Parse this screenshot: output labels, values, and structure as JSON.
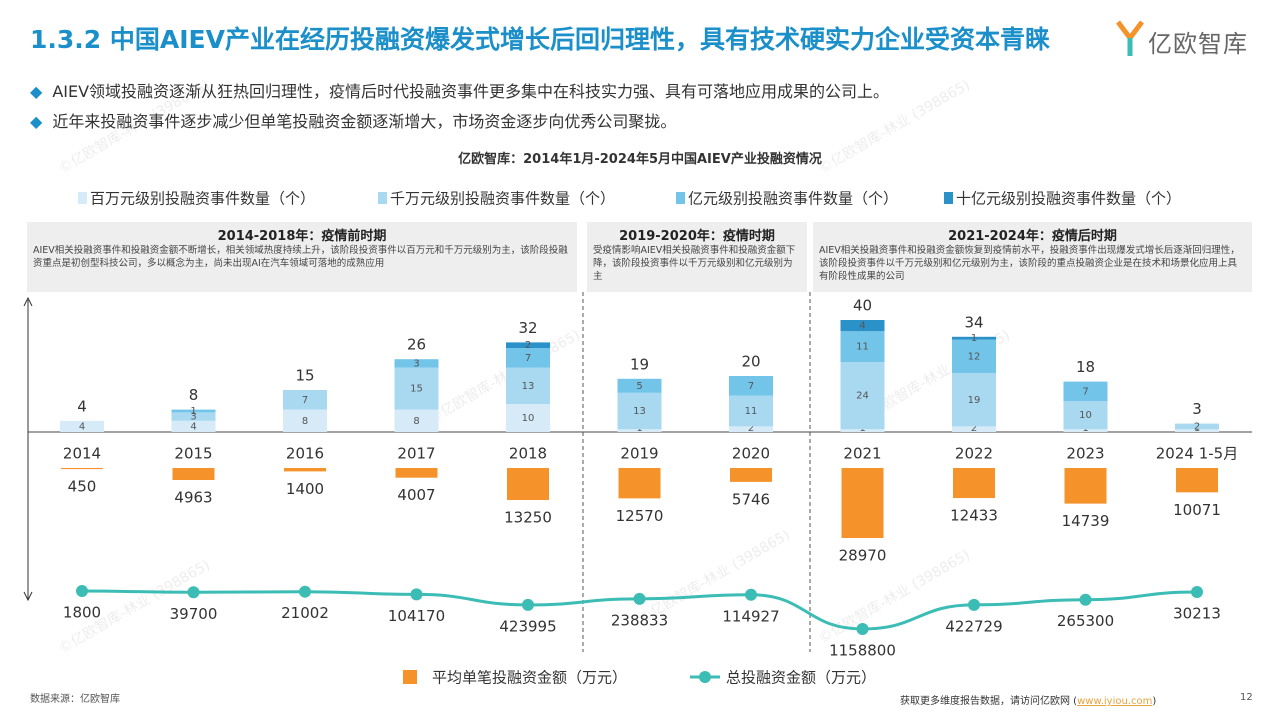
{
  "header": {
    "title": "1.3.2 中国AIEV产业在经历投融资爆发式增长后回归理性，具有技术硬实力企业受资本青睐",
    "logo": "亿欧智库"
  },
  "bullets": [
    "AIEV领域投融资逐渐从狂热回归理性，疫情后时代投融资事件更多集中在科技实力强、具有可落地应用成果的公司上。",
    "近年来投融资事件逐步减少但单笔投融资金额逐渐增大，市场资金逐步向优秀公司聚拢。"
  ],
  "watermark": "©亿欧智库-林业 (398865)",
  "chart_data": [
    {
      "type": "bar",
      "stacked": true,
      "title": "亿欧智库：2014年1月-2024年5月中国AIEV产业投融资情况",
      "categories": [
        "2014",
        "2015",
        "2016",
        "2017",
        "2018",
        "2019",
        "2020",
        "2021",
        "2022",
        "2023",
        "2024 1-5月"
      ],
      "series": [
        {
          "name": "百万元级别投融资事件数量（个）",
          "color": "#d6ebf7",
          "values": [
            4,
            4,
            8,
            8,
            10,
            1,
            2,
            1,
            2,
            1,
            1
          ]
        },
        {
          "name": "千万元级别投融资事件数量（个）",
          "color": "#a9d9f0",
          "values": [
            null,
            3,
            7,
            15,
            13,
            13,
            11,
            24,
            19,
            10,
            2
          ]
        },
        {
          "name": "亿元级别投融资事件数量（个）",
          "color": "#72c4e9",
          "values": [
            null,
            1,
            null,
            3,
            7,
            5,
            7,
            11,
            12,
            7,
            null
          ]
        },
        {
          "name": "十亿元级别投融资事件数量（个）",
          "color": "#2a92c9",
          "values": [
            null,
            null,
            null,
            null,
            2,
            null,
            null,
            4,
            1,
            null,
            null
          ]
        }
      ],
      "totals": [
        4,
        8,
        15,
        26,
        32,
        19,
        20,
        40,
        34,
        18,
        3
      ],
      "annotations": [
        {
          "title": "2014-2018年：疫情前时期",
          "text": "AIEV相关投融资事件和投融资金额不断增长，相关领域热度持续上升，该阶段投资事件以百万元和千万元级别为主，该阶段投融资重点是初创型科技公司，多以概念为主，尚未出现AI在汽车领域可落地的成熟应用"
        },
        {
          "title": "2019-2020年：疫情时期",
          "text": "受疫情影响AIEV相关投融资事件和投融资金额下降，该阶段投资事件以千万元级别和亿元级别为主"
        },
        {
          "title": "2021-2024年：疫情后时期",
          "text": "AIEV相关投融资事件和投融资金额恢复到疫情前水平，投融资事件出现爆发式增长后逐渐回归理性，该阶段投资事件以千万元级别和亿元级别为主，该阶段的重点投融资企业是在技术和场景化应用上具有阶段性成果的公司"
        }
      ]
    },
    {
      "type": "bar",
      "name": "平均单笔投融资金额（万元）",
      "color": "#f5922a",
      "values": [
        450,
        4963,
        1400,
        4007,
        13250,
        12570,
        5746,
        28970,
        12433,
        14739,
        10071
      ]
    },
    {
      "type": "line",
      "name": "总投融资金额（万元）",
      "color": "#3bbcb4",
      "values": [
        1800,
        39700,
        21002,
        104170,
        423995,
        238833,
        114927,
        1158800,
        422729,
        265300,
        30213
      ]
    }
  ],
  "footer": {
    "source": "数据来源：亿欧智库",
    "text": "获取更多维度报告数据，请访问亿欧网 (",
    "link": "www.iyiou.com",
    "close": ")",
    "page": "12"
  }
}
